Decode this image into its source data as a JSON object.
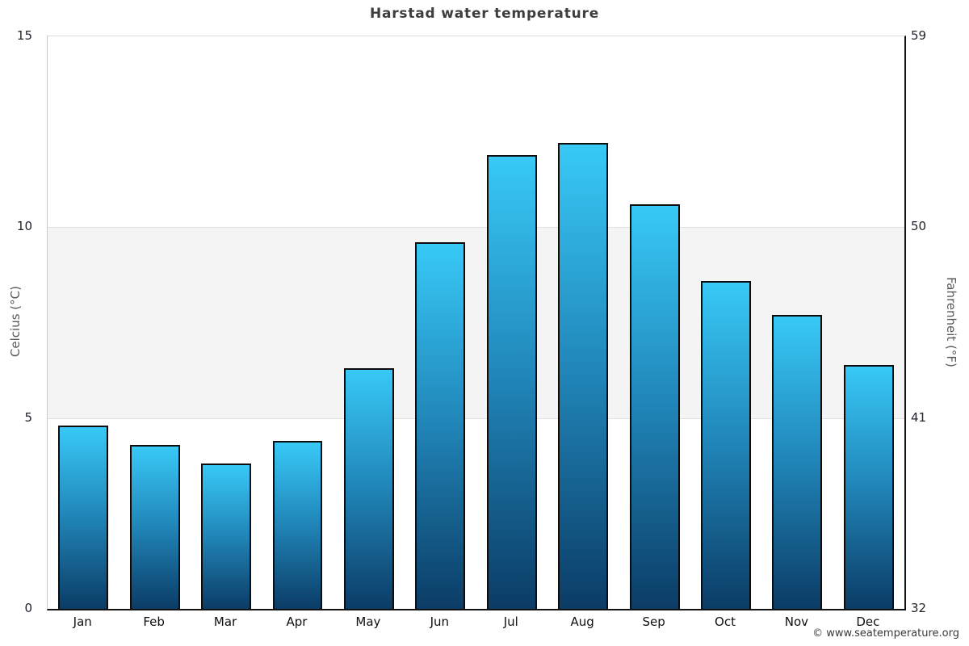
{
  "title": "Harstad water temperature",
  "footer": {
    "copyright": "© www.seatemperature.org"
  },
  "chart_data": {
    "type": "bar",
    "title": "Harstad water temperature",
    "categories": [
      "Jan",
      "Feb",
      "Mar",
      "Apr",
      "May",
      "Jun",
      "Jul",
      "Aug",
      "Sep",
      "Oct",
      "Nov",
      "Dec"
    ],
    "values": [
      4.8,
      4.3,
      3.8,
      4.4,
      6.3,
      9.6,
      11.9,
      12.2,
      10.6,
      8.6,
      7.7,
      6.4
    ],
    "unit": "°C",
    "ylabel_left": "Celcius (°C)",
    "ylabel_right": "Fahrenheit (°F)",
    "ylim": [
      0,
      15
    ],
    "ylim_right": [
      32,
      59
    ],
    "yticks_left": [
      {
        "value": 15,
        "label": "15"
      },
      {
        "value": 10,
        "label": "10"
      },
      {
        "value": 5,
        "label": "5"
      },
      {
        "value": 0,
        "label": "0"
      }
    ],
    "yticks_right": [
      {
        "value": 15,
        "label": "59"
      },
      {
        "value": 10,
        "label": "50"
      },
      {
        "value": 5,
        "label": "41"
      },
      {
        "value": 0,
        "label": "32"
      }
    ],
    "gridlines": [
      10,
      5
    ],
    "shaded_band": [
      5,
      10
    ],
    "legend": null,
    "colors": {
      "bar_gradient_top": "#38c9f7",
      "bar_gradient_mid": "#2187ba",
      "bar_gradient_bottom": "#0b3c66",
      "bar_border": "#0d0d0d",
      "band": "#f4f4f4",
      "gridline": "#e0e0e0",
      "title_text": "#3d3d3d",
      "tick_text": "#23232e",
      "axis_title_text": "#595959"
    }
  }
}
